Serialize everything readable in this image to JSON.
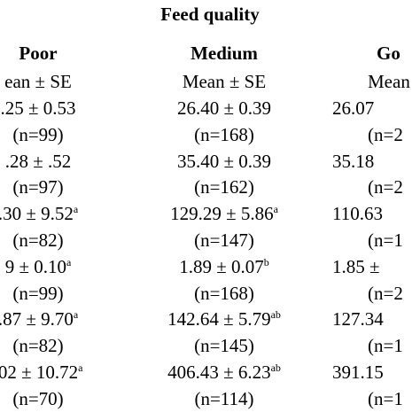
{
  "title": "Feed quality",
  "columns": [
    {
      "name": "Poor",
      "sub": "ean ± SE"
    },
    {
      "name": "Medium",
      "sub": "Mean ± SE"
    },
    {
      "name": "Go",
      "sub": "Mean"
    }
  ],
  "rows": [
    {
      "c1": ".25 ± 0.53",
      "c1_sup": "",
      "c2": "26.40 ± 0.39",
      "c2_sup": "",
      "c3": "26.07"
    },
    {
      "c1": "(n=99)",
      "c1_sup": "",
      "c2": "(n=168)",
      "c2_sup": "",
      "c3": "(n=2"
    },
    {
      "c1": ".28 ± .52",
      "c1_sup": "",
      "c2": "35.40 ± 0.39",
      "c2_sup": "",
      "c3": "35.18"
    },
    {
      "c1": "(n=97)",
      "c1_sup": "",
      "c2": "(n=162)",
      "c2_sup": "",
      "c3": "(n=2"
    },
    {
      "c1": ".30 ± 9.52",
      "c1_sup": "a",
      "c2": "129.29 ± 5.86",
      "c2_sup": "a",
      "c3": "110.63"
    },
    {
      "c1": "(n=82)",
      "c1_sup": "",
      "c2": "(n=147)",
      "c2_sup": "",
      "c3": "(n=1"
    },
    {
      "c1": "9 ± 0.10",
      "c1_sup": "a",
      "c2": "1.89 ± 0.07",
      "c2_sup": "b",
      "c3": "1.85 ±"
    },
    {
      "c1": "(n=99)",
      "c1_sup": "",
      "c2": "(n=168)",
      "c2_sup": "",
      "c3": "(n=2"
    },
    {
      "c1": ".87 ± 9.70",
      "c1_sup": "a",
      "c2": "142.64 ± 5.79",
      "c2_sup": "ab",
      "c3": "127.34"
    },
    {
      "c1": "(n=82)",
      "c1_sup": "",
      "c2": "(n=145)",
      "c2_sup": "",
      "c3": "(n=1"
    },
    {
      "c1": ".02 ± 10.72",
      "c1_sup": "a",
      "c2": "406.43 ± 6.23",
      "c2_sup": "ab",
      "c3": "391.15"
    },
    {
      "c1": "(n=70)",
      "c1_sup": "",
      "c2": "(n=114)",
      "c2_sup": "",
      "c3": "(n=1"
    }
  ]
}
